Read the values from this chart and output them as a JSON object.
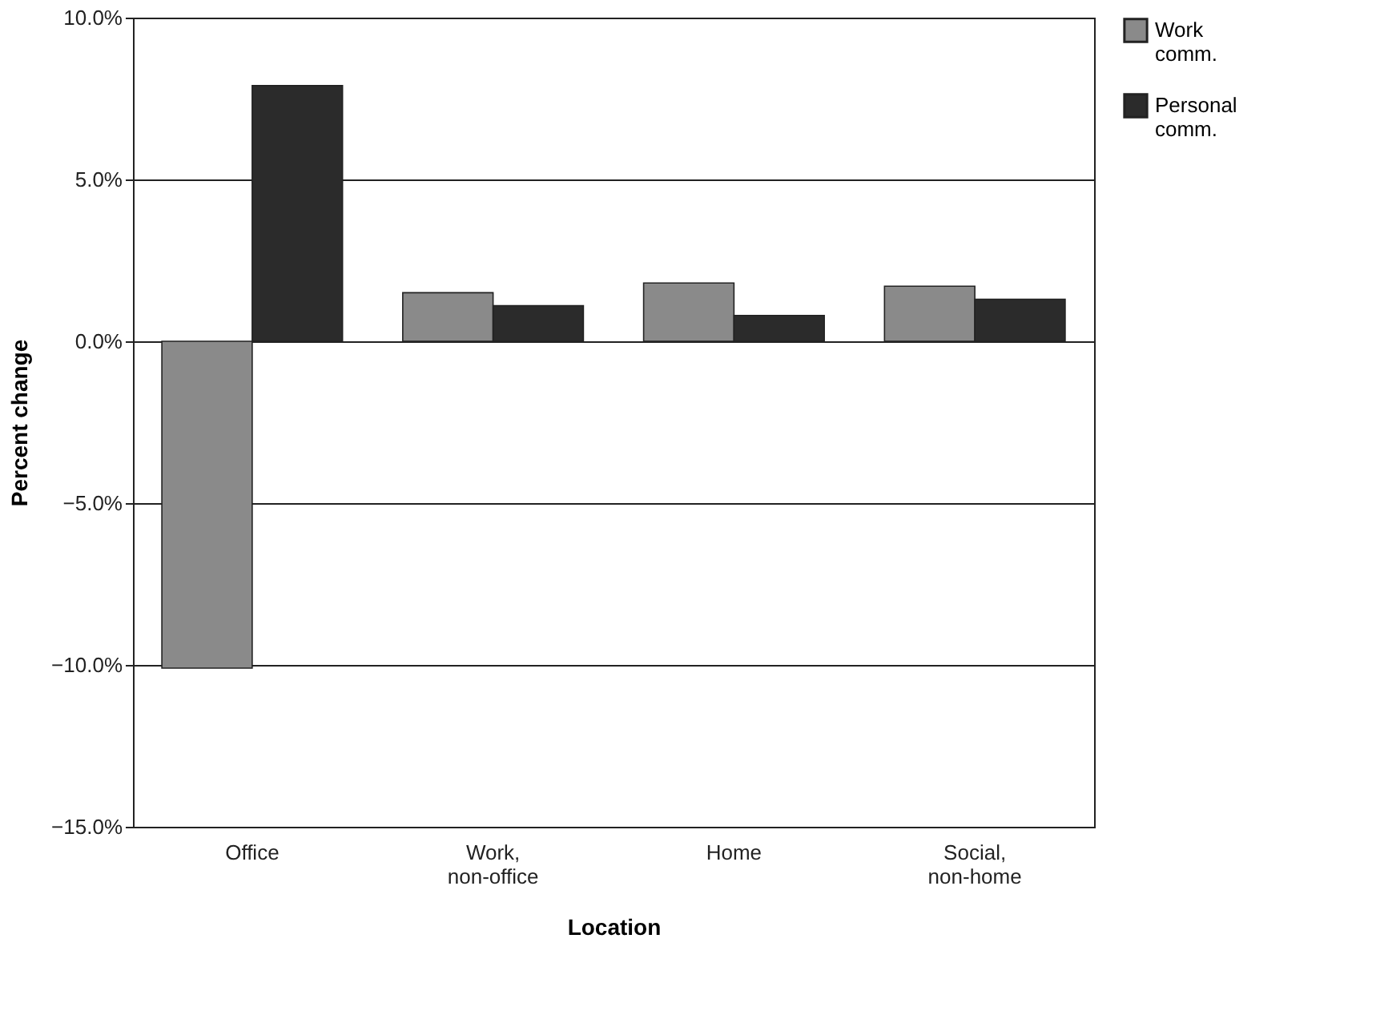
{
  "chart_data": {
    "type": "bar",
    "xlabel": "Location",
    "ylabel": "Percent change",
    "categories": [
      "Office",
      "Work, non-office",
      "Home",
      "Social, non-home"
    ],
    "series": [
      {
        "name": "Work comm.",
        "color": "#8a8a8a",
        "values": [
          -10.1,
          1.5,
          1.8,
          1.7
        ]
      },
      {
        "name": "Personal comm.",
        "color": "#2b2b2b",
        "values": [
          7.9,
          1.1,
          0.8,
          1.3
        ]
      }
    ],
    "ylim": [
      -15,
      10
    ],
    "yticks": [
      {
        "value": -15,
        "label": "−15.0%"
      },
      {
        "value": -10,
        "label": "−10.0%"
      },
      {
        "value": -5,
        "label": "−5.0%"
      },
      {
        "value": 0,
        "label": "0.0%"
      },
      {
        "value": 5,
        "label": "5.0%"
      },
      {
        "value": 10,
        "label": "10.0%"
      }
    ],
    "grid": "y",
    "legend": "right"
  }
}
